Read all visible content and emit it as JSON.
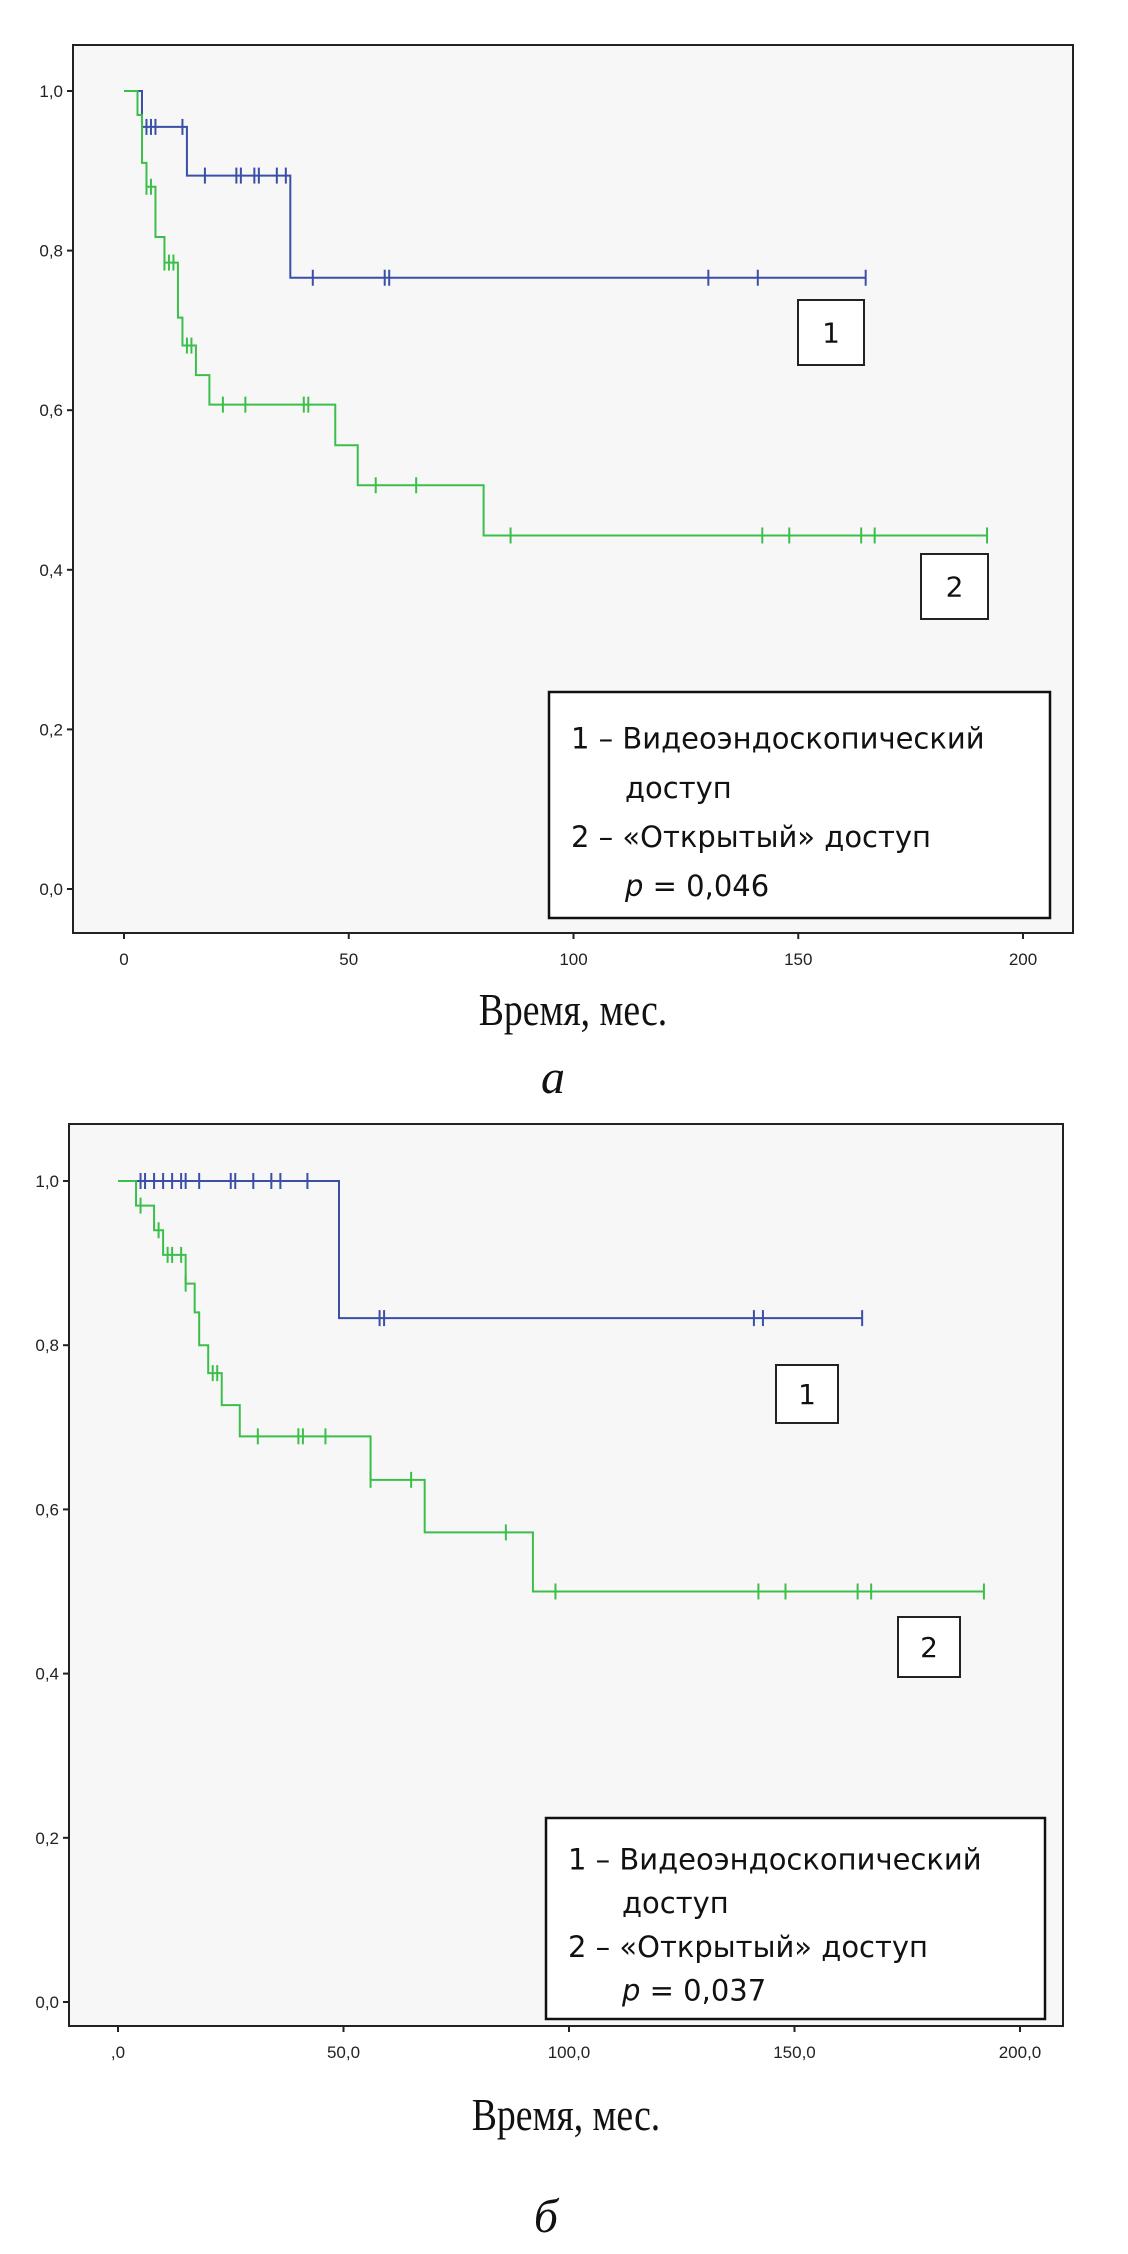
{
  "colors": {
    "group1": "#3a4fa8",
    "group2": "#3cbf4a",
    "plot_bg": "#f7f7f7"
  },
  "chart_data": [
    {
      "type": "line",
      "subtype": "kaplan-meier-step",
      "panel_label": "а",
      "xlabel": "Время, мес.",
      "ylabel": "",
      "xlim": [
        -5,
        210
      ],
      "ylim": [
        -0.05,
        1.1
      ],
      "xticks": [
        0,
        50,
        100,
        150,
        200
      ],
      "xtick_labels": [
        "0",
        "50",
        "100",
        "150",
        "200"
      ],
      "yticks": [
        0,
        0.2,
        0.4,
        0.6,
        0.8,
        1.0
      ],
      "ytick_labels": [
        "0,0",
        "0,2",
        "0,4",
        "0,6",
        "0,8",
        "1,0"
      ],
      "grid": false,
      "group_labels": [
        "1",
        "2"
      ],
      "legend": {
        "lines": [
          "1 – Видеоэндоскопический",
          "доступ",
          "2 – «Открытый» доступ",
          "p = 0,046"
        ],
        "p_symbol": "p",
        "p_value": "= 0,046",
        "placement": "bottom-right"
      },
      "series": [
        {
          "name": "1",
          "steps": [
            [
              0,
              1.0
            ],
            [
              4,
              0.955
            ],
            [
              14,
              0.894
            ],
            [
              37,
              0.766
            ],
            [
              165,
              0.766
            ]
          ],
          "censored": [
            5,
            6,
            7,
            13,
            18,
            25,
            26,
            29,
            30,
            34,
            36,
            42,
            58,
            59,
            130,
            141,
            165
          ]
        },
        {
          "name": "2",
          "steps": [
            [
              0,
              1.0
            ],
            [
              3,
              0.97
            ],
            [
              4,
              0.91
            ],
            [
              5,
              0.88
            ],
            [
              7,
              0.817
            ],
            [
              9,
              0.785
            ],
            [
              12,
              0.716
            ],
            [
              13,
              0.681
            ],
            [
              16,
              0.644
            ],
            [
              19,
              0.607
            ],
            [
              47,
              0.556
            ],
            [
              52,
              0.506
            ],
            [
              80,
              0.443
            ],
            [
              192,
              0.443
            ]
          ],
          "censored": [
            5,
            6,
            9,
            10,
            11,
            14,
            15,
            22,
            27,
            40,
            41,
            56,
            65,
            86,
            142,
            148,
            164,
            167,
            192
          ]
        }
      ]
    },
    {
      "type": "line",
      "subtype": "kaplan-meier-step",
      "panel_label": "б",
      "xlabel": "Время, мес.",
      "ylabel": "",
      "xlim": [
        -5,
        210
      ],
      "ylim": [
        -0.05,
        1.1
      ],
      "xticks": [
        0,
        50,
        100,
        150,
        200
      ],
      "xtick_labels": [
        ",0",
        "50,0",
        "100,0",
        "150,0",
        "200,0"
      ],
      "yticks": [
        0,
        0.2,
        0.4,
        0.6,
        0.8,
        1.0
      ],
      "ytick_labels": [
        "0,0",
        "0,2",
        "0,4",
        "0,6",
        "0,8",
        "1,0"
      ],
      "grid": false,
      "group_labels": [
        "1",
        "2"
      ],
      "legend": {
        "lines": [
          "1 – Видеоэндоскопический",
          "доступ",
          "2 – «Открытый» доступ",
          "p = 0,037"
        ],
        "p_symbol": "p",
        "p_value": "= 0,037",
        "placement": "bottom-right"
      },
      "series": [
        {
          "name": "1",
          "steps": [
            [
              0,
              1.0
            ],
            [
              49,
              0.833
            ],
            [
              165,
              0.833
            ]
          ],
          "censored": [
            5,
            6,
            8,
            10,
            12,
            14,
            15,
            18,
            25,
            26,
            30,
            34,
            36,
            42,
            58,
            59,
            141,
            143,
            165
          ]
        },
        {
          "name": "2",
          "steps": [
            [
              0,
              1.0
            ],
            [
              4,
              0.97
            ],
            [
              8,
              0.94
            ],
            [
              10,
              0.91
            ],
            [
              15,
              0.875
            ],
            [
              17,
              0.84
            ],
            [
              18,
              0.8
            ],
            [
              20,
              0.766
            ],
            [
              23,
              0.727
            ],
            [
              27,
              0.689
            ],
            [
              56,
              0.636
            ],
            [
              68,
              0.572
            ],
            [
              92,
              0.5
            ],
            [
              192,
              0.5
            ]
          ],
          "censored": [
            5,
            9,
            11,
            12,
            14,
            15,
            21,
            22,
            31,
            40,
            41,
            46,
            56,
            65,
            86,
            97,
            142,
            148,
            164,
            167,
            192
          ]
        }
      ]
    }
  ]
}
